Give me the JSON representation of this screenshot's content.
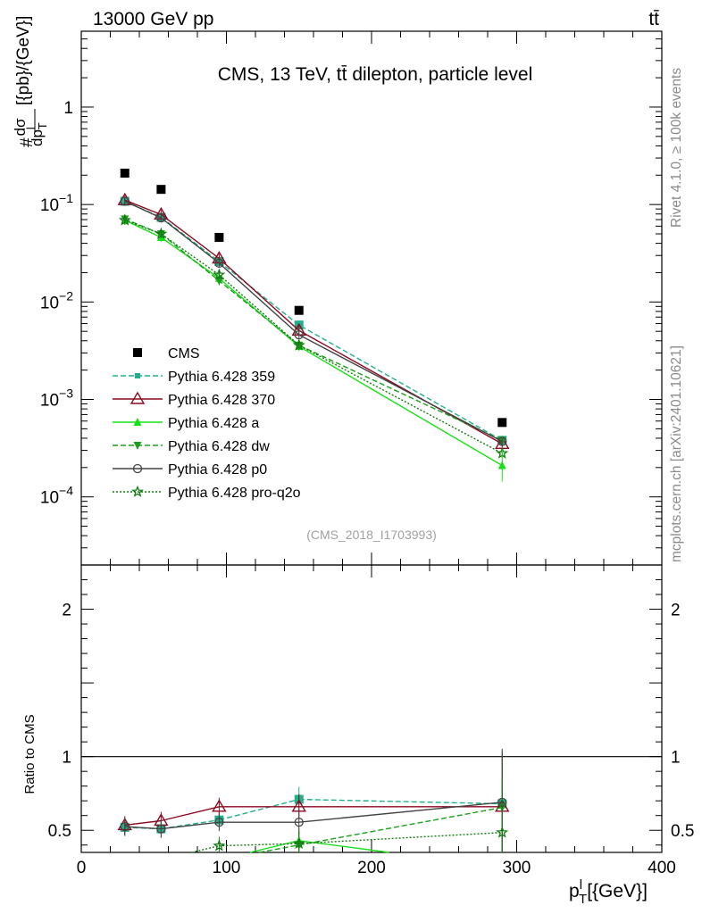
{
  "header": {
    "left": "13000 GeV pp",
    "right": "tt̄"
  },
  "side_labels": {
    "rivet": "Rivet 4.1.0, ≥ 100k events",
    "mcplots": "mcplots.cern.ch [arXiv:2401.10621]"
  },
  "chart_data": {
    "type": "line",
    "title": "CMS, 13 TeV, tt̄ dilepton, particle level",
    "analysis_tag": "(CMS_2018_I1703993)",
    "ylabel_main": "#dσ/dp^l_T [{pb}/{GeV}]",
    "ylabel_ratio": "Ratio to CMS",
    "xlabel": "p^l_T [{GeV}]",
    "xlim": [
      0,
      400
    ],
    "ylim_main": [
      2e-05,
      6
    ],
    "ylim_ratio": [
      0.35,
      2.3
    ],
    "x_ticks": [
      "0",
      "100",
      "200",
      "300",
      "400"
    ],
    "y_ticks_main": [
      {
        "base": "1",
        "exp": ""
      },
      {
        "base": "10",
        "exp": "−1"
      },
      {
        "base": "10",
        "exp": "−2"
      },
      {
        "base": "10",
        "exp": "−3"
      },
      {
        "base": "10",
        "exp": "−4"
      }
    ],
    "y_ticks_ratio": [
      "0.5",
      "1",
      "2"
    ],
    "x": [
      30,
      55,
      95,
      150,
      290
    ],
    "data": {
      "name": "CMS",
      "values": [
        0.21,
        0.143,
        0.046,
        0.0082,
        0.00058
      ]
    },
    "series": [
      {
        "name": "Pythia 6.428 359",
        "color": "#20b08a",
        "dash": "6,3",
        "marker": "square",
        "values": [
          0.108,
          0.074,
          0.026,
          0.0058,
          0.00038
        ],
        "ratio": [
          0.52,
          0.51,
          0.57,
          0.71,
          0.68
        ]
      },
      {
        "name": "Pythia 6.428 370",
        "color": "#8b0a1f",
        "dash": "",
        "marker": "triangle-open",
        "values": [
          0.111,
          0.079,
          0.028,
          0.0051,
          0.00035
        ],
        "ratio": [
          0.535,
          0.565,
          0.66,
          0.66,
          0.66
        ]
      },
      {
        "name": "Pythia 6.428 a",
        "color": "#18e018",
        "dash": "",
        "marker": "triangle",
        "values": [
          0.069,
          0.046,
          0.0175,
          0.0035,
          0.00021
        ],
        "ratio": [
          0.3,
          0.3,
          0.3,
          0.43,
          0.25
        ]
      },
      {
        "name": "Pythia 6.428 dw",
        "color": "#1aa01a",
        "dash": "6,3",
        "marker": "triangle-down",
        "values": [
          0.071,
          0.05,
          0.0165,
          0.0036,
          0.00038
        ],
        "ratio": [
          0.3,
          0.3,
          0.3,
          0.4,
          0.655
        ]
      },
      {
        "name": "Pythia 6.428 p0",
        "color": "#444444",
        "dash": "",
        "marker": "circle-open",
        "values": [
          0.108,
          0.073,
          0.025,
          0.0046,
          0.00037
        ],
        "ratio": [
          0.525,
          0.51,
          0.555,
          0.555,
          0.69
        ]
      },
      {
        "name": "Pythia 6.428 pro-q2o",
        "color": "#137a13",
        "dash": "2,2",
        "marker": "star",
        "values": [
          0.069,
          0.05,
          0.019,
          0.0036,
          0.00028
        ],
        "ratio": [
          0.3,
          0.3,
          0.395,
          0.41,
          0.485
        ]
      }
    ]
  }
}
